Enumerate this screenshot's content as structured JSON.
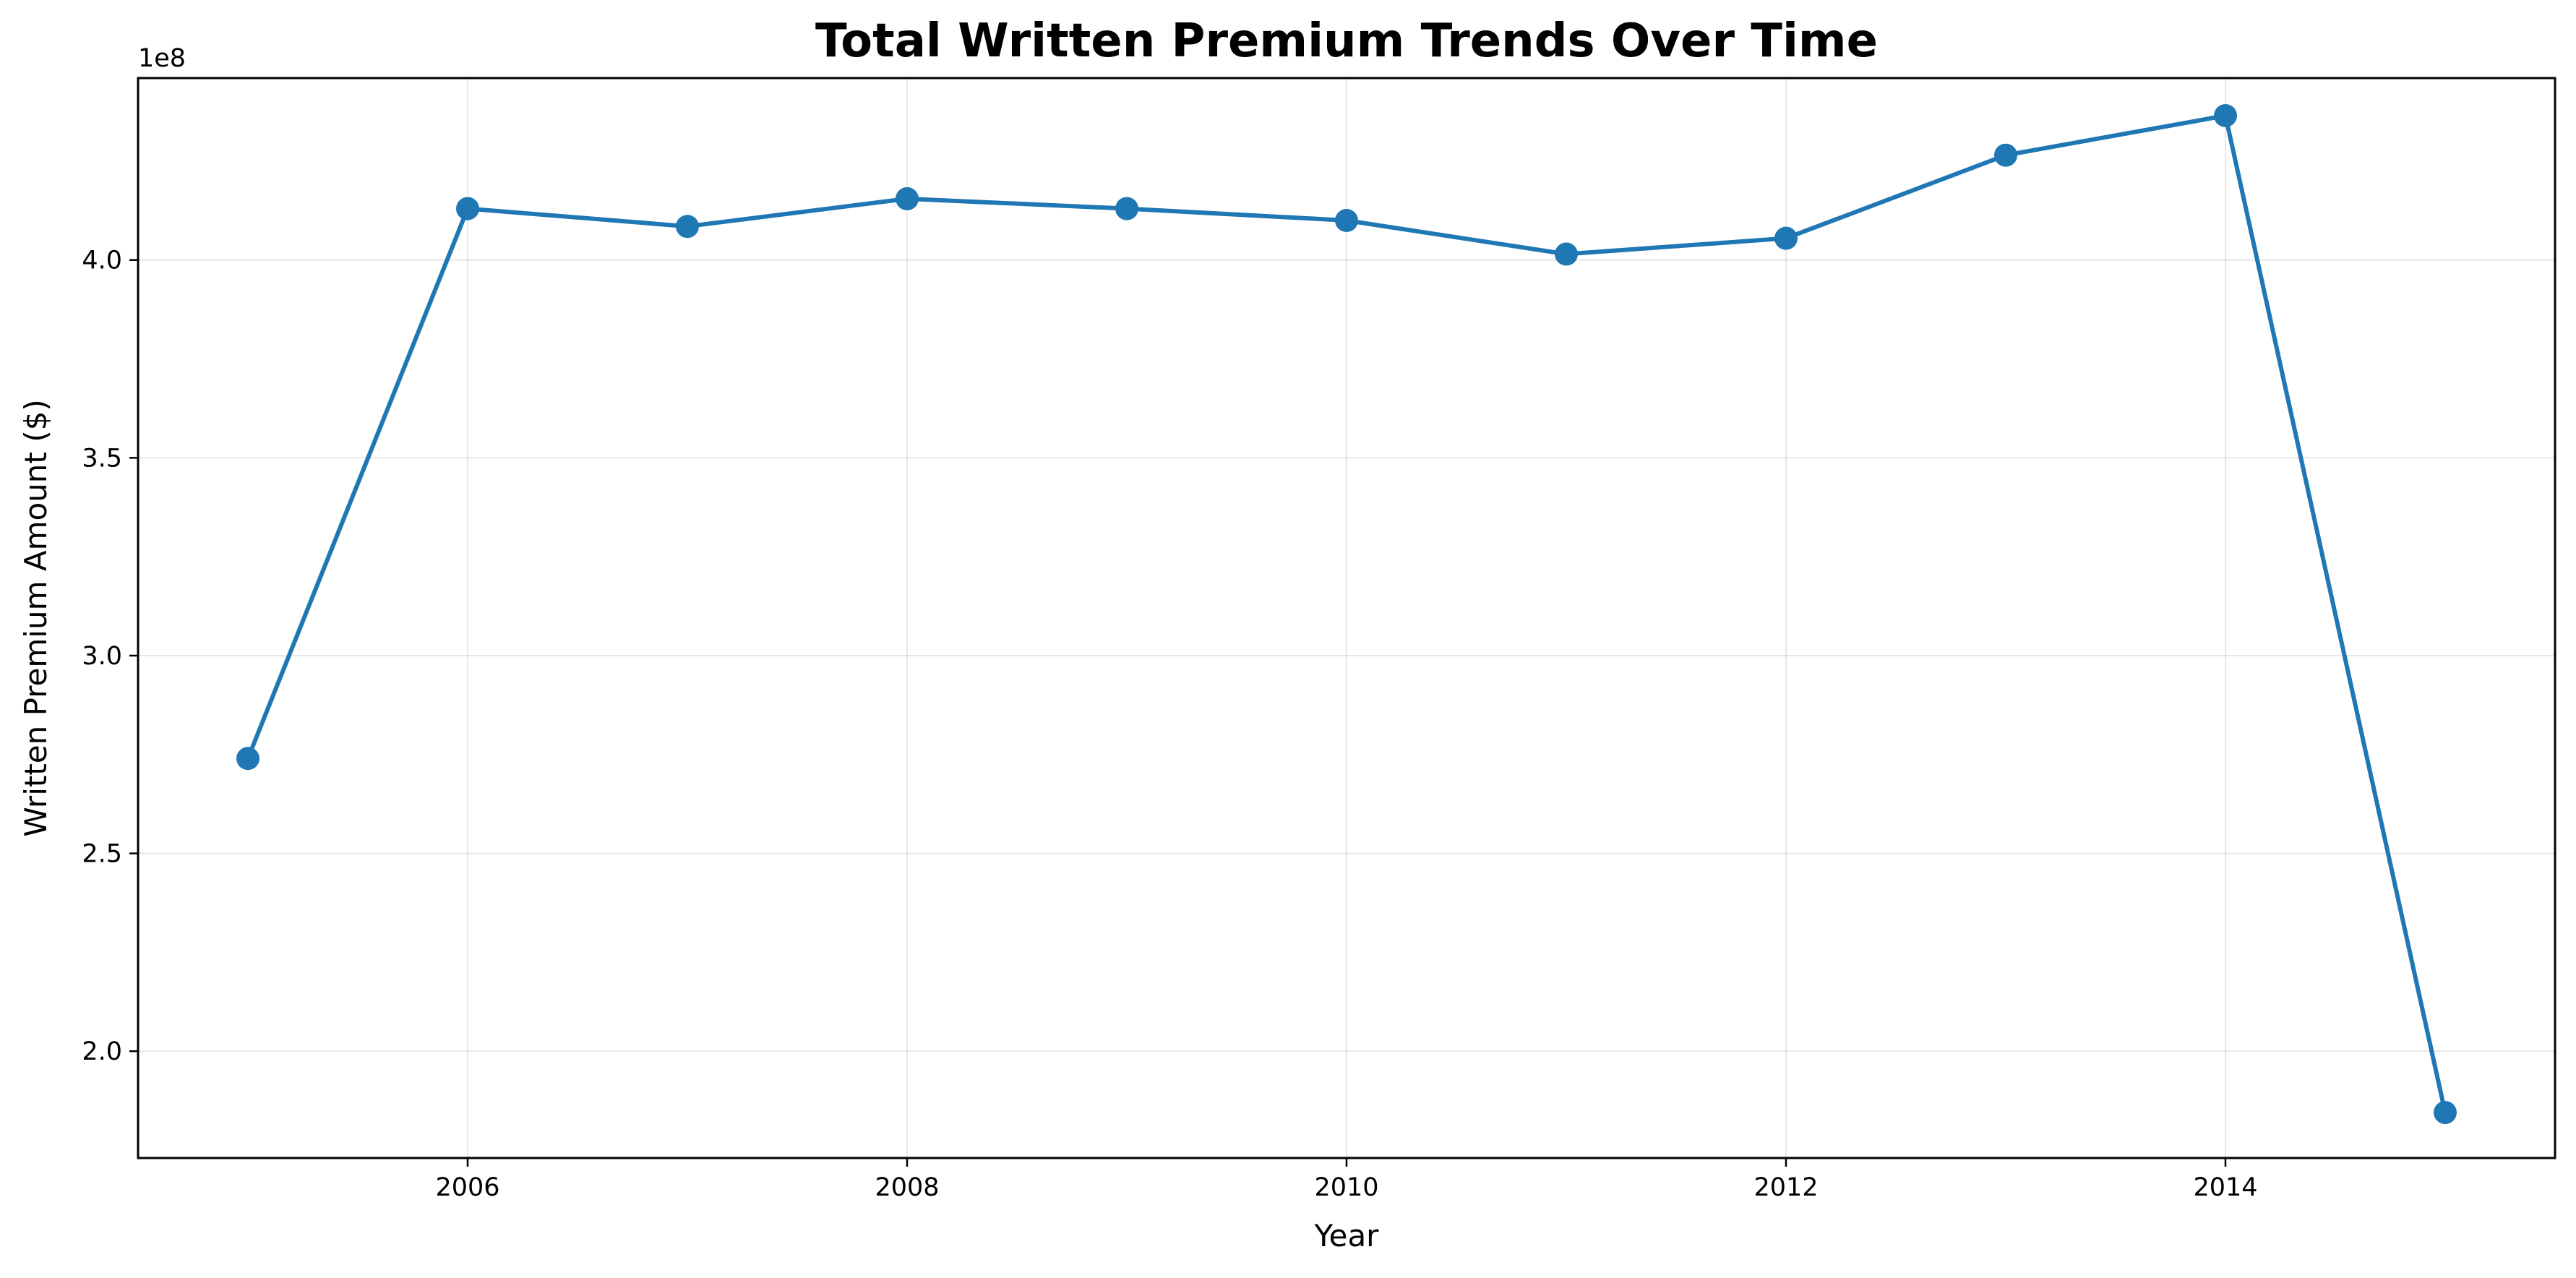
{
  "chart_data": {
    "type": "line",
    "title": "Total Written Premium Trends Over Time",
    "xlabel": "Year",
    "ylabel": "Written Premium Amount ($)",
    "y_offset_label": "1e8",
    "x": [
      2005,
      2006,
      2007,
      2008,
      2009,
      2010,
      2011,
      2012,
      2013,
      2014,
      2015
    ],
    "series": [
      {
        "values": [
          274000000,
          413000000,
          408500000,
          415500000,
          413000000,
          410000000,
          401500000,
          405500000,
          426500000,
          436500000,
          184500000
        ],
        "color": "#1f77b4"
      }
    ],
    "xlim": [
      2004.5,
      2015.5
    ],
    "ylim": [
      173000000,
      446000000
    ],
    "x_ticks": [
      2006,
      2008,
      2010,
      2012,
      2014
    ],
    "x_tick_labels": [
      "2006",
      "2008",
      "2010",
      "2012",
      "2014"
    ],
    "y_ticks": [
      200000000,
      250000000,
      300000000,
      350000000,
      400000000
    ],
    "y_tick_labels": [
      "2.0",
      "2.5",
      "3.0",
      "3.5",
      "4.0"
    ],
    "grid": true,
    "marker": "circle"
  }
}
